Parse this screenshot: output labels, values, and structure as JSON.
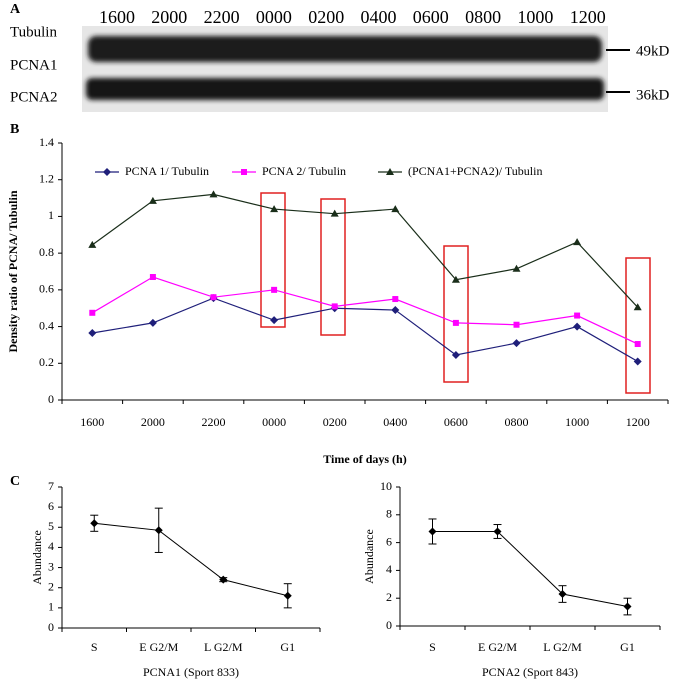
{
  "blot": {
    "label": "A",
    "row_labels": [
      "Tubulin",
      "PCNA1",
      "PCNA2"
    ],
    "lanes": [
      "1600",
      "2000",
      "2200",
      "0000",
      "0200",
      "0400",
      "0600",
      "0800",
      "1000",
      "1200"
    ],
    "markers": [
      "49kD",
      "36kD"
    ]
  },
  "chart_data": [
    {
      "type": "line",
      "label": "B",
      "ylabel": "Density ratio of PCNA/ Tubulin",
      "xlabel": "Time of days (h)",
      "categories": [
        "1600",
        "2000",
        "2200",
        "0000",
        "0200",
        "0400",
        "0600",
        "0800",
        "1000",
        "1200"
      ],
      "ylim": [
        0,
        1.4
      ],
      "yticks": [
        0,
        0.2,
        0.4,
        0.6,
        0.8,
        1,
        1.2,
        1.4
      ],
      "legend": "top",
      "series": [
        {
          "name": "PCNA 1/ Tubulin",
          "color": "#1f1f7a",
          "marker": "diamond",
          "values": [
            0.365,
            0.42,
            0.555,
            0.435,
            0.5,
            0.49,
            0.245,
            0.31,
            0.4,
            0.21
          ]
        },
        {
          "name": "PCNA 2/ Tubulin",
          "color": "#ff00ff",
          "marker": "square",
          "values": [
            0.475,
            0.67,
            0.56,
            0.6,
            0.51,
            0.55,
            0.42,
            0.41,
            0.46,
            0.305
          ]
        },
        {
          "name": "(PCNA1+PCNA2)/ Tubulin",
          "color": "#1a2e1a",
          "marker": "triangle",
          "values": [
            0.845,
            1.085,
            1.12,
            1.04,
            1.015,
            1.04,
            0.655,
            0.715,
            0.86,
            0.505
          ]
        }
      ]
    },
    {
      "type": "errorbar",
      "label": "C",
      "ylabel": "Abundance",
      "xlabel": "PCNA1 (Sport 833)",
      "categories": [
        "S",
        "E G2/M",
        "L G2/M",
        "G1"
      ],
      "ylim": [
        0,
        7
      ],
      "yticks": [
        0,
        1,
        2,
        3,
        4,
        5,
        6,
        7
      ],
      "color": "#000000",
      "values": [
        5.2,
        4.85,
        2.4,
        1.6
      ],
      "errors": [
        0.4,
        1.1,
        0.1,
        0.6
      ]
    },
    {
      "type": "errorbar",
      "ylabel": "Abundance",
      "xlabel": "PCNA2 (Sport 843)",
      "categories": [
        "S",
        "E G2/M",
        "L G2/M",
        "G1"
      ],
      "ylim": [
        0,
        10
      ],
      "yticks": [
        0,
        2,
        4,
        6,
        8,
        10
      ],
      "color": "#000000",
      "values": [
        6.8,
        6.8,
        2.3,
        1.4
      ],
      "errors": [
        0.9,
        0.5,
        0.6,
        0.6
      ]
    }
  ]
}
